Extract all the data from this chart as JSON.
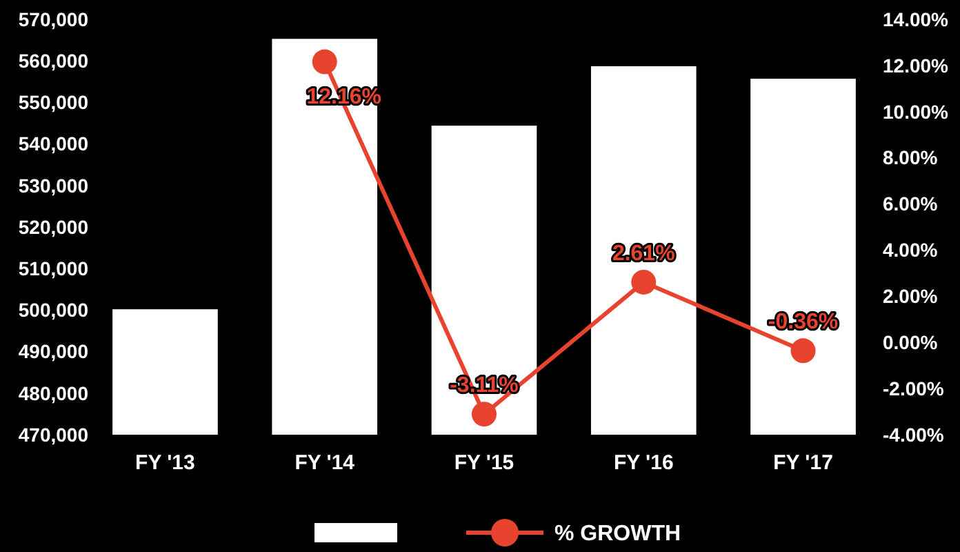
{
  "chart_data": {
    "type": "bar",
    "categories": [
      "FY '13",
      "FY '14",
      "FY '15",
      "FY '16",
      "FY '17"
    ],
    "series": [
      {
        "color": "#ffffff",
        "values": [
          500200,
          565300,
          544400,
          558700,
          555700
        ]
      },
      {
        "type": "line",
        "axis": "y2",
        "name": "% GROWTH",
        "color": "#e8432f",
        "marker": "circle",
        "values": [
          null,
          12.16,
          -3.11,
          2.61,
          -0.36
        ],
        "value_labels": [
          null,
          "12.16%",
          "-3.11%",
          "2.61%",
          "-0.36%"
        ]
      }
    ],
    "ylim": [
      470000,
      570000
    ],
    "yticks": [
      {
        "value": 470000,
        "label": "470,000"
      },
      {
        "value": 480000,
        "label": "480,000"
      },
      {
        "value": 490000,
        "label": "490,000"
      },
      {
        "value": 500000,
        "label": "500,000"
      },
      {
        "value": 510000,
        "label": "510,000"
      },
      {
        "value": 520000,
        "label": "520,000"
      },
      {
        "value": 530000,
        "label": "530,000"
      },
      {
        "value": 540000,
        "label": "540,000"
      },
      {
        "value": 550000,
        "label": "550,000"
      },
      {
        "value": 560000,
        "label": "560,000"
      },
      {
        "value": 570000,
        "label": "570,000"
      }
    ],
    "y2lim": [
      -4,
      14
    ],
    "y2ticks": [
      {
        "value": -4,
        "label": "-4.00%"
      },
      {
        "value": -2,
        "label": "-2.00%"
      },
      {
        "value": 0,
        "label": "0.00%"
      },
      {
        "value": 2,
        "label": "2.00%"
      },
      {
        "value": 4,
        "label": "4.00%"
      },
      {
        "value": 6,
        "label": "6.00%"
      },
      {
        "value": 8,
        "label": "8.00%"
      },
      {
        "value": 10,
        "label": "10.00%"
      },
      {
        "value": 12,
        "label": "12.00%"
      },
      {
        "value": 14,
        "label": "14.00%"
      }
    ],
    "legend": "bottom",
    "grid": false
  }
}
